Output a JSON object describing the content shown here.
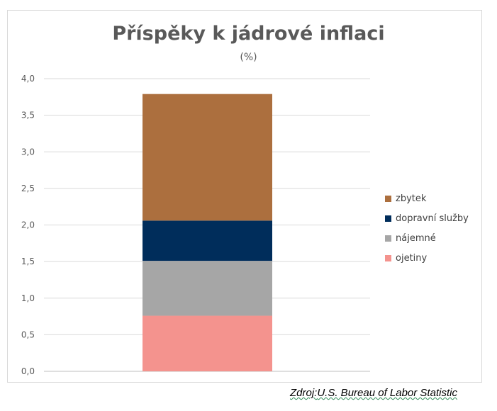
{
  "chart_data": {
    "type": "bar",
    "stacked": true,
    "title": "Příspěky k jádrové inflaci",
    "subtitle": "(%)",
    "xlabel": "",
    "ylabel": "",
    "ylim": [
      0,
      4
    ],
    "ytick_labels": [
      "0,0",
      "0,5",
      "1,0",
      "1,5",
      "2,0",
      "2,5",
      "3,0",
      "3,5",
      "4,0"
    ],
    "grid": true,
    "legend_position": "right",
    "categories": [
      ""
    ],
    "series": [
      {
        "name": "ojetiny",
        "values": [
          0.76
        ],
        "color": "#f4938e"
      },
      {
        "name": "nájemné",
        "values": [
          0.75
        ],
        "color": "#a6a6a6"
      },
      {
        "name": "dopravní služby",
        "values": [
          0.55
        ],
        "color": "#002d5b"
      },
      {
        "name": "zbytek",
        "values": [
          1.73
        ],
        "color": "#ac6f3e"
      }
    ]
  },
  "source": {
    "prefix": "Zdroj:",
    "org": "U.S. Bureau of Labor Statistic"
  }
}
